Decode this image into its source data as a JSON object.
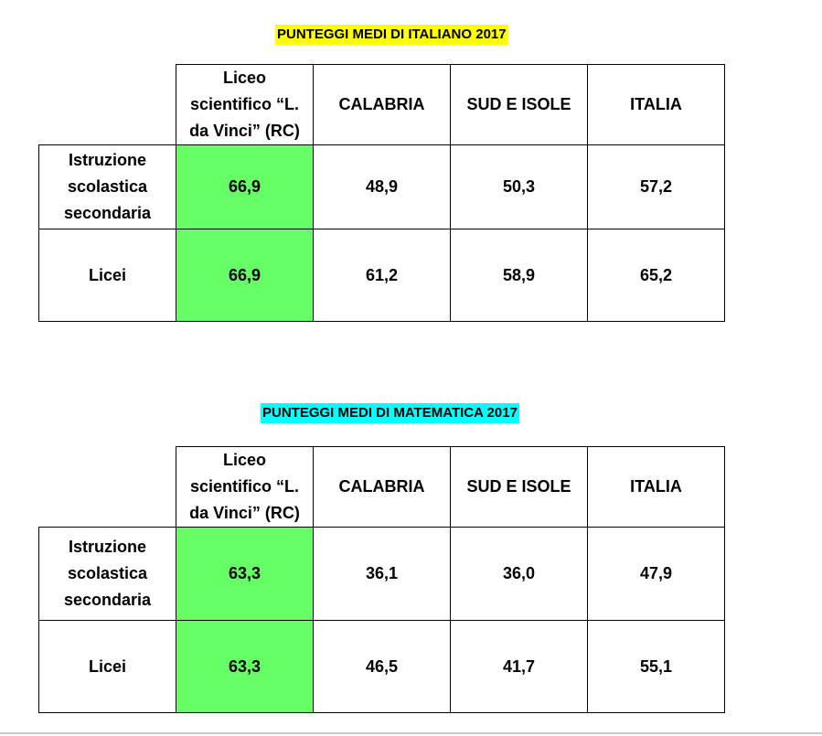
{
  "italiano": {
    "title": "PUNTEGGI MEDI DI ITALIANO 2017",
    "columns": [
      "Liceo scientifico “L. da Vinci” (RC)",
      "CALABRIA",
      "SUD E ISOLE",
      "ITALIA"
    ],
    "rows": [
      {
        "label": "Istruzione scolastica secondaria",
        "values": [
          "66,9",
          "48,9",
          "50,3",
          "57,2"
        ]
      },
      {
        "label": "Licei",
        "values": [
          "66,9",
          "61,2",
          "58,9",
          "65,2"
        ]
      }
    ]
  },
  "matematica": {
    "title": "PUNTEGGI MEDI DI MATEMATICA 2017",
    "columns": [
      "Liceo scientifico “L. da Vinci” (RC)",
      "CALABRIA",
      "SUD E ISOLE",
      "ITALIA"
    ],
    "rows": [
      {
        "label": "Istruzione scolastica secondaria",
        "values": [
          "63,3",
          "36,1",
          "36,0",
          "47,9"
        ]
      },
      {
        "label": "Licei",
        "values": [
          "63,3",
          "46,5",
          "41,7",
          "55,1"
        ]
      }
    ]
  },
  "colors": {
    "italiano_title_highlight": "#ffff00",
    "matematica_title_highlight": "#00ffff",
    "school_column_highlight": "#66ff66"
  }
}
